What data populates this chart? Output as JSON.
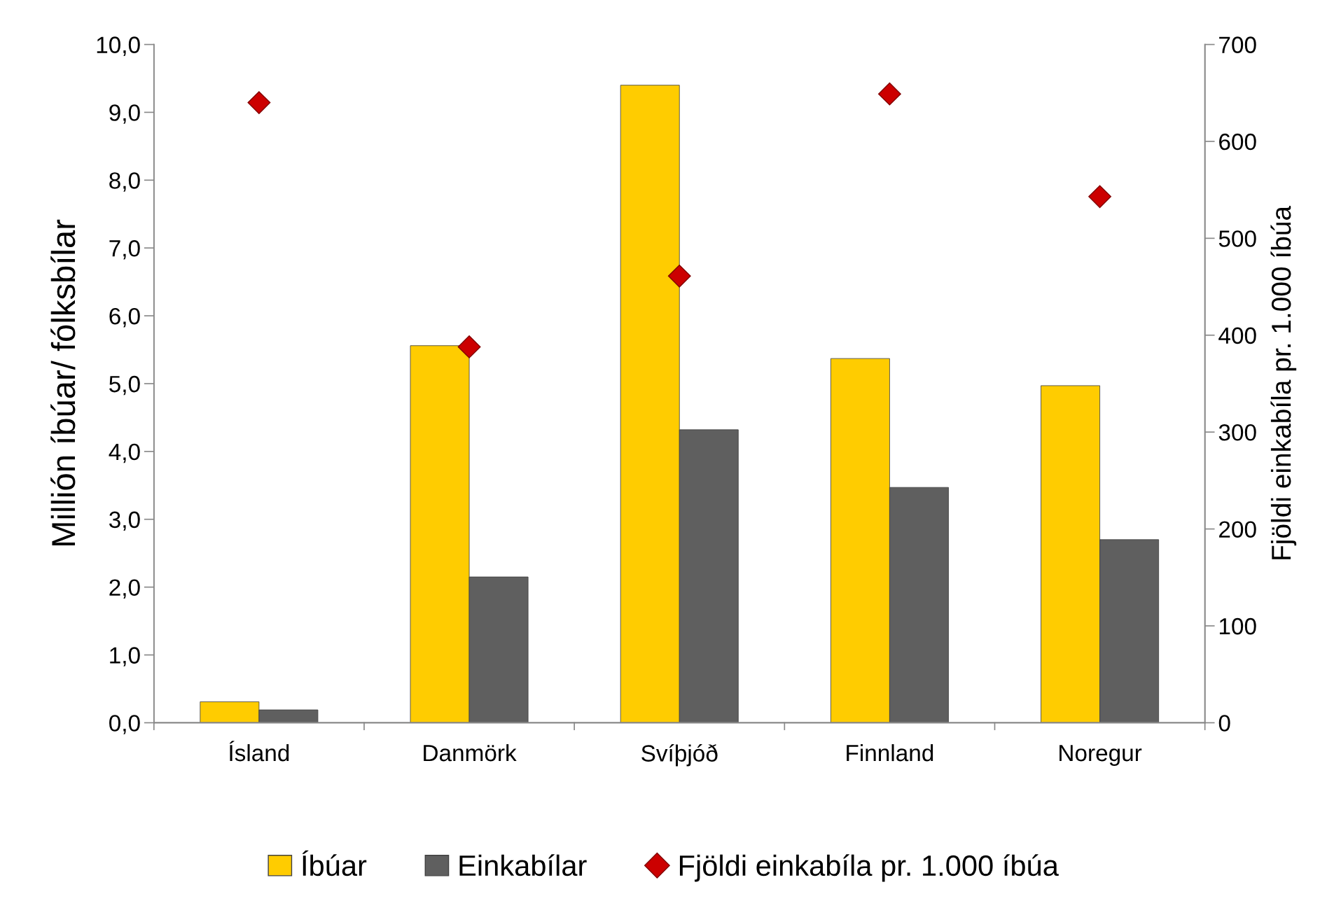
{
  "chart_data": {
    "type": "bar",
    "categories": [
      "Ísland",
      "Danmörk",
      "Svíþjóð",
      "Finnland",
      "Noregur"
    ],
    "series": [
      {
        "name": "Íbúar",
        "color": "#ffcc00",
        "values": [
          0.31,
          5.56,
          9.4,
          5.37,
          4.97
        ]
      },
      {
        "name": "Einkabílar",
        "color": "#5f5f5f",
        "values": [
          0.19,
          2.15,
          4.32,
          3.47,
          2.7
        ]
      },
      {
        "name": "Fjöldi einkabíla pr. 1.000 íbúa",
        "type": "scatter",
        "axis": "y2",
        "color": "#cc0000",
        "marker": "diamond",
        "values": [
          640,
          388,
          461,
          649,
          543
        ]
      }
    ],
    "ylabel": "Millión íbúar/ fólksbílar",
    "y2label": "Fjöldi einkabíla pr. 1.000 íbúa",
    "ylim": [
      0,
      10
    ],
    "yticks": [
      {
        "value": 0,
        "label": "0,0"
      },
      {
        "value": 1,
        "label": "1,0"
      },
      {
        "value": 2,
        "label": "2,0"
      },
      {
        "value": 3,
        "label": "3,0"
      },
      {
        "value": 4,
        "label": "4,0"
      },
      {
        "value": 5,
        "label": "5,0"
      },
      {
        "value": 6,
        "label": "6,0"
      },
      {
        "value": 7,
        "label": "7,0"
      },
      {
        "value": 8,
        "label": "8,0"
      },
      {
        "value": 9,
        "label": "9,0"
      },
      {
        "value": 10,
        "label": "10,0"
      }
    ],
    "y2lim": [
      0,
      700
    ],
    "y2ticks": [
      0,
      100,
      200,
      300,
      400,
      500,
      600,
      700
    ],
    "grid": false,
    "legend": "bottom"
  }
}
